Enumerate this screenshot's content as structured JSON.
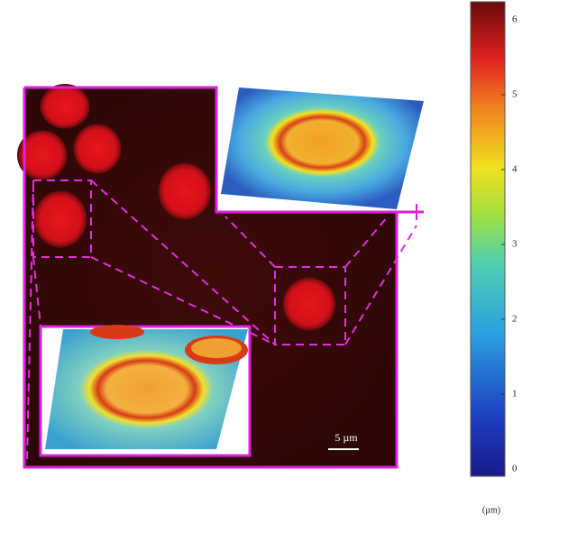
{
  "colorbar": {
    "ticks": [
      0,
      1,
      2,
      3,
      4,
      5,
      6
    ],
    "unit": "(µm)"
  },
  "scale_bar": {
    "label": "5 µm"
  }
}
